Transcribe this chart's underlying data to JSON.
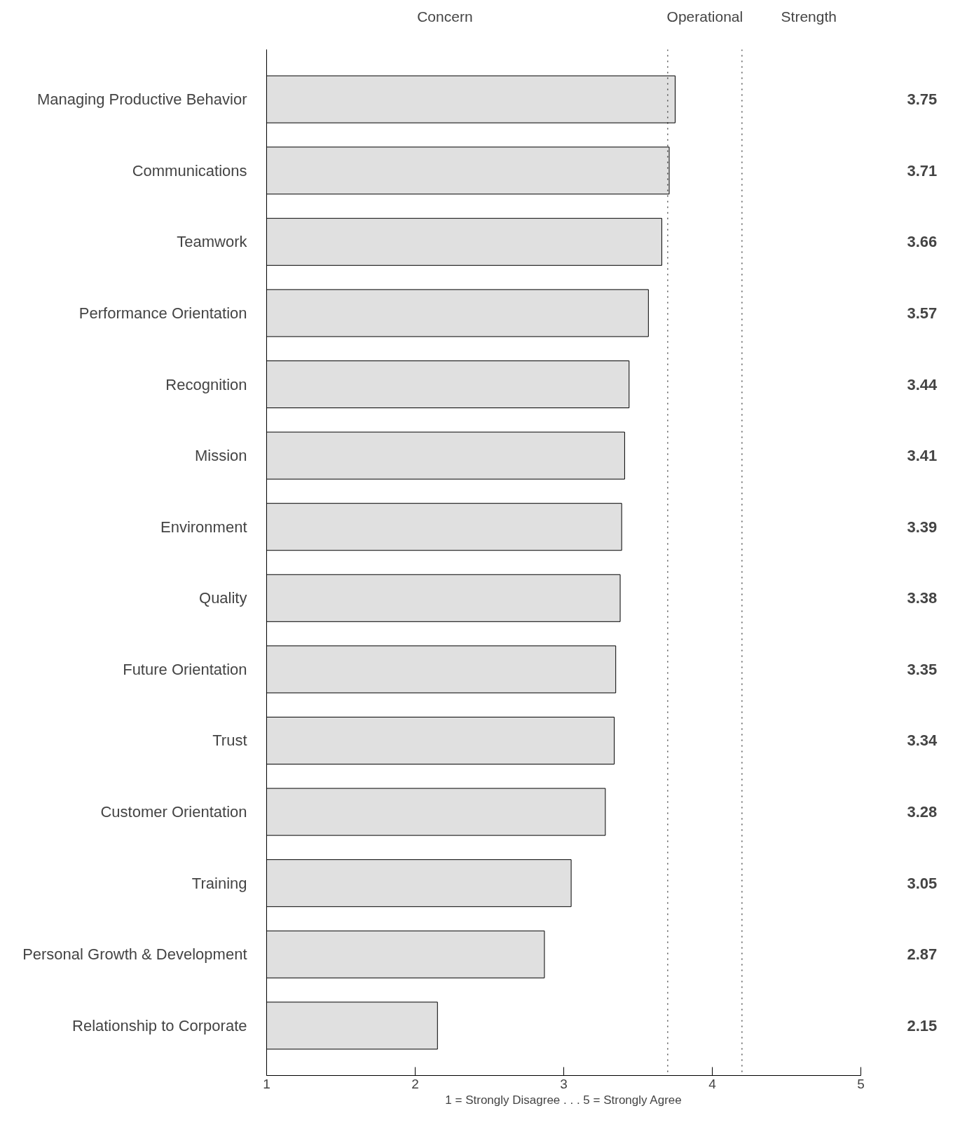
{
  "chart_data": {
    "type": "bar",
    "orientation": "horizontal",
    "categories": [
      "Managing Productive Behavior",
      "Communications",
      "Teamwork",
      "Performance Orientation",
      "Recognition",
      "Mission",
      "Environment",
      "Quality",
      "Future Orientation",
      "Trust",
      "Customer Orientation",
      "Training",
      "Personal Growth & Development",
      "Relationship to Corporate"
    ],
    "values": [
      3.75,
      3.71,
      3.66,
      3.57,
      3.44,
      3.41,
      3.39,
      3.38,
      3.35,
      3.34,
      3.28,
      3.05,
      2.87,
      2.15
    ],
    "color": "#e0e0e0",
    "xlim": [
      1,
      5
    ],
    "xticks": [
      1,
      2,
      3,
      4,
      5
    ],
    "xlabel": "1 = Strongly Disagree . . . 5 = Strongly Agree",
    "annotations": [
      "Concern",
      "Operational",
      "Strength"
    ],
    "ref_lines": [
      {
        "axis": "x",
        "value": 3.7,
        "line_style": "dotted"
      },
      {
        "axis": "x",
        "value": 4.2,
        "line_style": "dotted"
      }
    ],
    "data_labels": true,
    "grid": false
  }
}
